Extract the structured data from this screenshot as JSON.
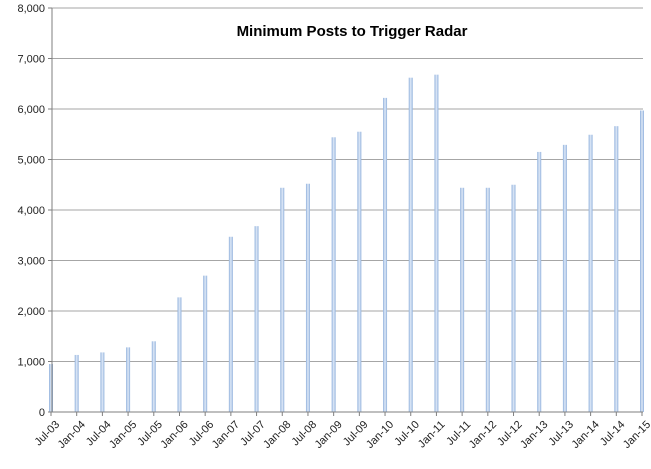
{
  "chart_data": {
    "type": "bar",
    "title": "Minimum Posts to Trigger Radar",
    "xlabel": "",
    "ylabel": "",
    "ylim": [
      0,
      8000
    ],
    "y_ticks": [
      0,
      1000,
      2000,
      3000,
      4000,
      5000,
      6000,
      7000,
      8000
    ],
    "y_tick_labels": [
      "0",
      "1,000",
      "2,000",
      "3,000",
      "4,000",
      "5,000",
      "6,000",
      "7,000",
      "8,000"
    ],
    "categories": [
      "Jul-03",
      "Jan-04",
      "Jul-04",
      "Jan-05",
      "Jul-05",
      "Jan-06",
      "Jul-06",
      "Jan-07",
      "Jul-07",
      "Jan-08",
      "Jul-08",
      "Jan-09",
      "Jul-09",
      "Jan-10",
      "Jul-10",
      "Jan-11",
      "Jul-11",
      "Jan-12",
      "Jul-12",
      "Jan-13",
      "Jul-13",
      "Jan-14",
      "Jul-14",
      "Jan-15"
    ],
    "values": [
      950,
      1130,
      1180,
      1280,
      1400,
      2270,
      2700,
      3470,
      3680,
      4440,
      4520,
      5440,
      5550,
      6220,
      6620,
      6680,
      4440,
      4440,
      4500,
      5150,
      5290,
      5490,
      5660,
      5970
    ],
    "grid": true,
    "legend": "none",
    "colors": {
      "bar": "#9fbde3",
      "bar_highlight": "#d6e4f5",
      "grid": "#a6a6a6",
      "axis": "#7f7f7f"
    }
  }
}
